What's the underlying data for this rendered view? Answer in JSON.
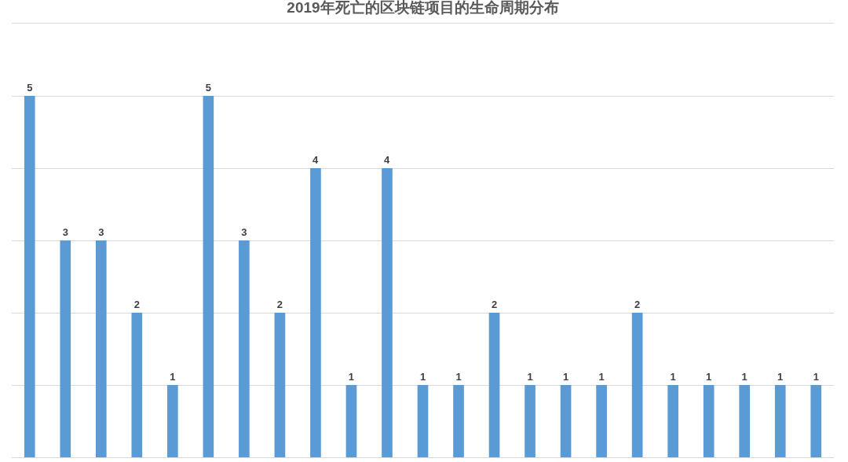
{
  "chart_data": {
    "type": "bar",
    "title": "2019年死亡的区块链项目的生命周期分布",
    "categories": [
      null,
      null,
      null,
      null,
      null,
      null,
      null,
      null,
      null,
      null,
      null,
      null,
      null,
      null,
      null,
      null,
      null,
      null,
      null,
      null,
      null,
      null,
      null
    ],
    "values": [
      5,
      3,
      3,
      2,
      1,
      5,
      3,
      2,
      4,
      1,
      4,
      1,
      1,
      2,
      1,
      1,
      1,
      2,
      1,
      1,
      1,
      1,
      1
    ],
    "color": "#5b9bd5",
    "ylim": [
      0,
      6
    ],
    "yticks": [
      {
        "value": 0,
        "label": null
      },
      {
        "value": 1,
        "label": null
      },
      {
        "value": 2,
        "label": null
      },
      {
        "value": 3,
        "label": null
      },
      {
        "value": 4,
        "label": null
      },
      {
        "value": 5,
        "label": null
      },
      {
        "value": 6,
        "label": null
      }
    ],
    "grid": "y",
    "data_labels": true
  }
}
